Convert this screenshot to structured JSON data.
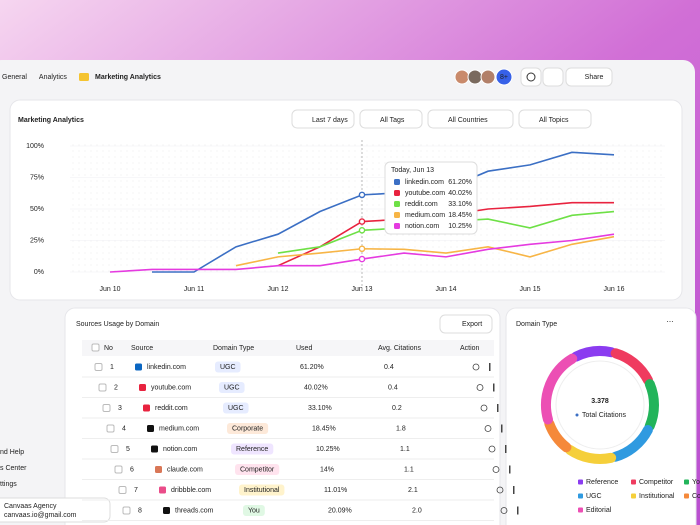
{
  "breadcrumb": [
    "General",
    "Analytics",
    "Marketing Analytics"
  ],
  "topbar": {
    "more_users": "8+",
    "share": "Share"
  },
  "sidebar": [
    "nd Help",
    "s Center",
    "ttings"
  ],
  "account": {
    "name": "Canvaas Agency",
    "email": "canvaas.io@gmail.com"
  },
  "filters": [
    "Last 7 days",
    "All Tags",
    "All Countries",
    "All Topics"
  ],
  "chart_data": {
    "type": "line",
    "title": "Marketing Analytics",
    "categories": [
      "Jun 10",
      null,
      "Jun 11",
      null,
      "Jun 12",
      null,
      "Jun 13",
      null,
      "Jun 14",
      null,
      "Jun 15",
      null,
      "Jun 16"
    ],
    "ylim": [
      0,
      100
    ],
    "yticks": [
      {
        "value": 0,
        "label": "0%"
      },
      {
        "value": 25,
        "label": "25%"
      },
      {
        "value": 50,
        "label": "50%"
      },
      {
        "value": 75,
        "label": "75%"
      },
      {
        "value": 100,
        "label": "100%"
      }
    ],
    "series": [
      {
        "name": "linkedin.com",
        "color": "#3b6fc4",
        "values": [
          null,
          0,
          0,
          20,
          30,
          48,
          61.2,
          63,
          66,
          80,
          85,
          95,
          93
        ]
      },
      {
        "name": "youtube.com",
        "color": "#e8233f",
        "values": [
          null,
          null,
          null,
          null,
          5,
          20,
          40.02,
          42,
          45,
          50,
          52,
          55,
          55
        ]
      },
      {
        "name": "reddit.com",
        "color": "#6ee046",
        "values": [
          null,
          null,
          null,
          null,
          15,
          20,
          33.1,
          35,
          40,
          42,
          35,
          45,
          48
        ]
      },
      {
        "name": "medium.com",
        "color": "#f7b546",
        "values": [
          null,
          null,
          null,
          5,
          12,
          15,
          18.45,
          18,
          15,
          20,
          12,
          22,
          28
        ]
      },
      {
        "name": "notion.com",
        "color": "#e53be0",
        "values": [
          0,
          2,
          2,
          2,
          5,
          5,
          10.25,
          15,
          12,
          18,
          22,
          25,
          30
        ]
      }
    ],
    "tooltip": {
      "date": "Today, Jun 13",
      "values": [
        "61.20%",
        "40.02%",
        "33.10%",
        "18.45%",
        "10.25%"
      ]
    }
  },
  "table": {
    "title": "Sources Usage by Domain",
    "export": "Export",
    "columns": [
      "No",
      "Source",
      "Domain Type",
      "Used",
      "Avg. Citations",
      "Action"
    ],
    "rows": [
      {
        "no": 1,
        "source": "linkedin.com",
        "domain_type": "UGC",
        "used": "61.20%",
        "avg": "0.4",
        "icon": "#0a66c2",
        "pill": "#e6ecff",
        "pill_text": "#3a5bd9"
      },
      {
        "no": 2,
        "source": "youtube.com",
        "domain_type": "UGC",
        "used": "40.02%",
        "avg": "0.4",
        "icon": "#e8233f",
        "pill": "#e6ecff",
        "pill_text": "#3a5bd9"
      },
      {
        "no": 3,
        "source": "reddit.com",
        "domain_type": "UGC",
        "used": "33.10%",
        "avg": "0.2",
        "icon": "#e8233f",
        "pill": "#e6ecff",
        "pill_text": "#3a5bd9"
      },
      {
        "no": 4,
        "source": "medium.com",
        "domain_type": "Corporate",
        "used": "18.45%",
        "avg": "1.8",
        "icon": "#111111",
        "pill": "#fde9d9",
        "pill_text": "#c46a1a"
      },
      {
        "no": 5,
        "source": "notion.com",
        "domain_type": "Reference",
        "used": "10.25%",
        "avg": "1.1",
        "icon": "#111111",
        "pill": "#efe5ff",
        "pill_text": "#7a3fd6"
      },
      {
        "no": 6,
        "source": "claude.com",
        "domain_type": "Competitor",
        "used": "14%",
        "avg": "1.1",
        "icon": "#d97757",
        "pill": "#ffe3ee",
        "pill_text": "#d0336b"
      },
      {
        "no": 7,
        "source": "dribbble.com",
        "domain_type": "Institutional",
        "used": "11.01%",
        "avg": "2.1",
        "icon": "#ea4c89",
        "pill": "#fff3cc",
        "pill_text": "#a77b00"
      },
      {
        "no": 8,
        "source": "threads.com",
        "domain_type": "You",
        "used": "20.09%",
        "avg": "2.0",
        "icon": "#111111",
        "pill": "#e0f8e4",
        "pill_text": "#2a9a44"
      }
    ]
  },
  "donut": {
    "title": "Domain Type",
    "total": "3.378",
    "total_label": "Total Citations",
    "segments": [
      {
        "name": "Reference",
        "color": "#8b3cf0",
        "value": 12
      },
      {
        "name": "Competitor",
        "color": "#ef3b5f",
        "value": 14
      },
      {
        "name": "You",
        "color": "#22b45a",
        "value": 14
      },
      {
        "name": "UGC",
        "color": "#2f9ae0",
        "value": 14
      },
      {
        "name": "Institutional",
        "color": "#f5cf3a",
        "value": 14
      },
      {
        "name": "Corporate",
        "color": "#f5893a",
        "value": 10
      },
      {
        "name": "Editorial",
        "color": "#ec4fb4",
        "value": 22
      }
    ]
  }
}
